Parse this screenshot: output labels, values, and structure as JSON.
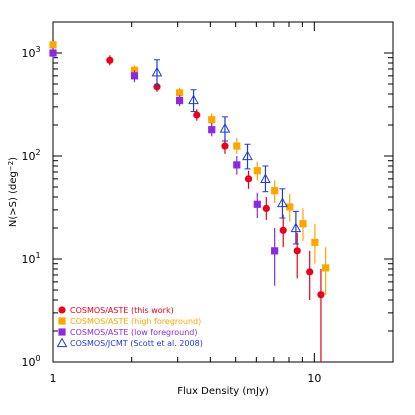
{
  "chart_data": {
    "type": "scatter",
    "xlabel": "Flux Density (mJy)",
    "ylabel": "N(>S) (deg",
    "ylabel_sup": "−2",
    "ylabel_close": ")",
    "x_scale": "log",
    "y_scale": "log",
    "xlim": [
      1,
      20
    ],
    "ylim": [
      1,
      2000
    ],
    "x_ticks": [
      {
        "value": 1,
        "label": "1"
      },
      {
        "value": 10,
        "label": "10"
      }
    ],
    "y_ticks": [
      {
        "value": 1,
        "base": "10",
        "exp": "0"
      },
      {
        "value": 10,
        "base": "10",
        "exp": "1"
      },
      {
        "value": 100,
        "base": "10",
        "exp": "2"
      },
      {
        "value": 1000,
        "base": "10",
        "exp": "3"
      }
    ],
    "grid": false,
    "legend_position": "bottom-left",
    "series": [
      {
        "name": "COSMOS/ASTE (this work)",
        "color": "#e8001c",
        "marker": "circle",
        "points": [
          {
            "x": 1.65,
            "y": 850,
            "lo": 760,
            "hi": 950
          },
          {
            "x": 2.5,
            "y": 470,
            "lo": 420,
            "hi": 520
          },
          {
            "x": 3.55,
            "y": 250,
            "lo": 220,
            "hi": 285
          },
          {
            "x": 4.55,
            "y": 125,
            "lo": 105,
            "hi": 145
          },
          {
            "x": 5.6,
            "y": 60,
            "lo": 48,
            "hi": 72
          },
          {
            "x": 6.55,
            "y": 31,
            "lo": 24,
            "hi": 40
          },
          {
            "x": 7.6,
            "y": 19,
            "lo": 13,
            "hi": 27
          },
          {
            "x": 8.6,
            "y": 12,
            "lo": 6.5,
            "hi": 18
          },
          {
            "x": 9.6,
            "y": 7.5,
            "lo": 4,
            "hi": 12
          },
          {
            "x": 10.6,
            "y": 4.5,
            "lo": 1,
            "hi": 8
          }
        ]
      },
      {
        "name": "COSMOS/ASTE (high foreground)",
        "color": "#ffa500",
        "marker": "square",
        "points": [
          {
            "x": 1.0,
            "y": 1200,
            "lo": 1100,
            "hi": 1300
          },
          {
            "x": 2.05,
            "y": 680,
            "lo": 600,
            "hi": 760
          },
          {
            "x": 3.05,
            "y": 410,
            "lo": 370,
            "hi": 460
          },
          {
            "x": 4.05,
            "y": 225,
            "lo": 195,
            "hi": 260
          },
          {
            "x": 5.05,
            "y": 125,
            "lo": 105,
            "hi": 150
          },
          {
            "x": 6.05,
            "y": 72,
            "lo": 58,
            "hi": 88
          },
          {
            "x": 7.05,
            "y": 46,
            "lo": 35,
            "hi": 58
          },
          {
            "x": 8.05,
            "y": 32,
            "lo": 23,
            "hi": 43
          },
          {
            "x": 9.05,
            "y": 22,
            "lo": 15,
            "hi": 31
          },
          {
            "x": 10.05,
            "y": 14.5,
            "lo": 9,
            "hi": 22
          },
          {
            "x": 11.05,
            "y": 8.2,
            "lo": 4.5,
            "hi": 13
          }
        ]
      },
      {
        "name": "COSMOS/ASTE (low foreground)",
        "color": "#8a2be2",
        "marker": "square",
        "points": [
          {
            "x": 1.0,
            "y": 1000,
            "lo": 880,
            "hi": 1120
          },
          {
            "x": 2.05,
            "y": 600,
            "lo": 520,
            "hi": 680
          },
          {
            "x": 3.05,
            "y": 345,
            "lo": 305,
            "hi": 390
          },
          {
            "x": 4.05,
            "y": 180,
            "lo": 155,
            "hi": 210
          },
          {
            "x": 5.05,
            "y": 82,
            "lo": 66,
            "hi": 100
          },
          {
            "x": 6.05,
            "y": 34,
            "lo": 25,
            "hi": 44
          },
          {
            "x": 7.05,
            "y": 12,
            "lo": 5.5,
            "hi": 20
          }
        ]
      },
      {
        "name": "COSMOS/JCMT (Scott et al. 2008)",
        "color": "#1e3cd2",
        "marker": "triangle",
        "points": [
          {
            "x": 2.5,
            "y": 650,
            "lo": 480,
            "hi": 860
          },
          {
            "x": 3.45,
            "y": 350,
            "lo": 270,
            "hi": 440
          },
          {
            "x": 4.55,
            "y": 185,
            "lo": 140,
            "hi": 240
          },
          {
            "x": 5.55,
            "y": 100,
            "lo": 75,
            "hi": 130
          },
          {
            "x": 6.5,
            "y": 60,
            "lo": 45,
            "hi": 80
          },
          {
            "x": 7.55,
            "y": 35,
            "lo": 25,
            "hi": 48
          },
          {
            "x": 8.5,
            "y": 20,
            "lo": 14,
            "hi": 29
          }
        ]
      }
    ]
  }
}
